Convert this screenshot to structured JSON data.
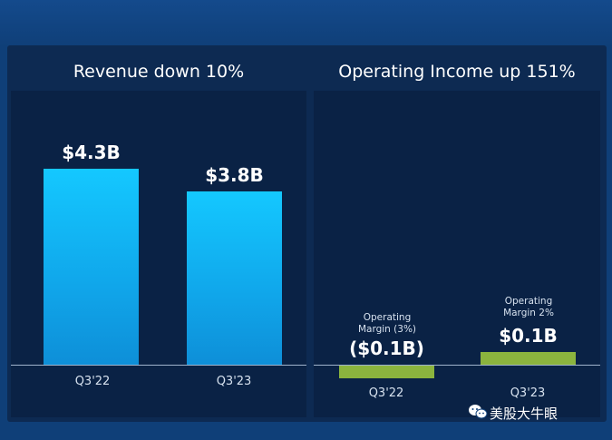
{
  "chart_data": [
    {
      "type": "bar",
      "title": "Revenue down 10%",
      "categories": [
        "Q3'22",
        "Q3'23"
      ],
      "values": [
        4.3,
        3.8
      ],
      "value_labels": [
        "$4.3B",
        "$3.8B"
      ],
      "unit": "B",
      "ylim": [
        0,
        5.0
      ],
      "grid": false,
      "legend": "none",
      "colors": {
        "bar": "#14c8ff",
        "background": "#0a2245"
      }
    },
    {
      "type": "bar",
      "title": "Operating Income up 151%",
      "categories": [
        "Q3'22",
        "Q3'23"
      ],
      "values": [
        -0.1,
        0.1
      ],
      "value_labels": [
        "($0.1B)",
        "$0.1B"
      ],
      "annotations": [
        "Operating\nMargin (3%)",
        "Operating\nMargin 2%"
      ],
      "unit": "B",
      "ylim": [
        -0.5,
        4.0
      ],
      "grid": false,
      "legend": "none",
      "colors": {
        "bar": "#8bb43e",
        "background": "#0a2245"
      }
    }
  ],
  "watermark": "美股大牛眼"
}
